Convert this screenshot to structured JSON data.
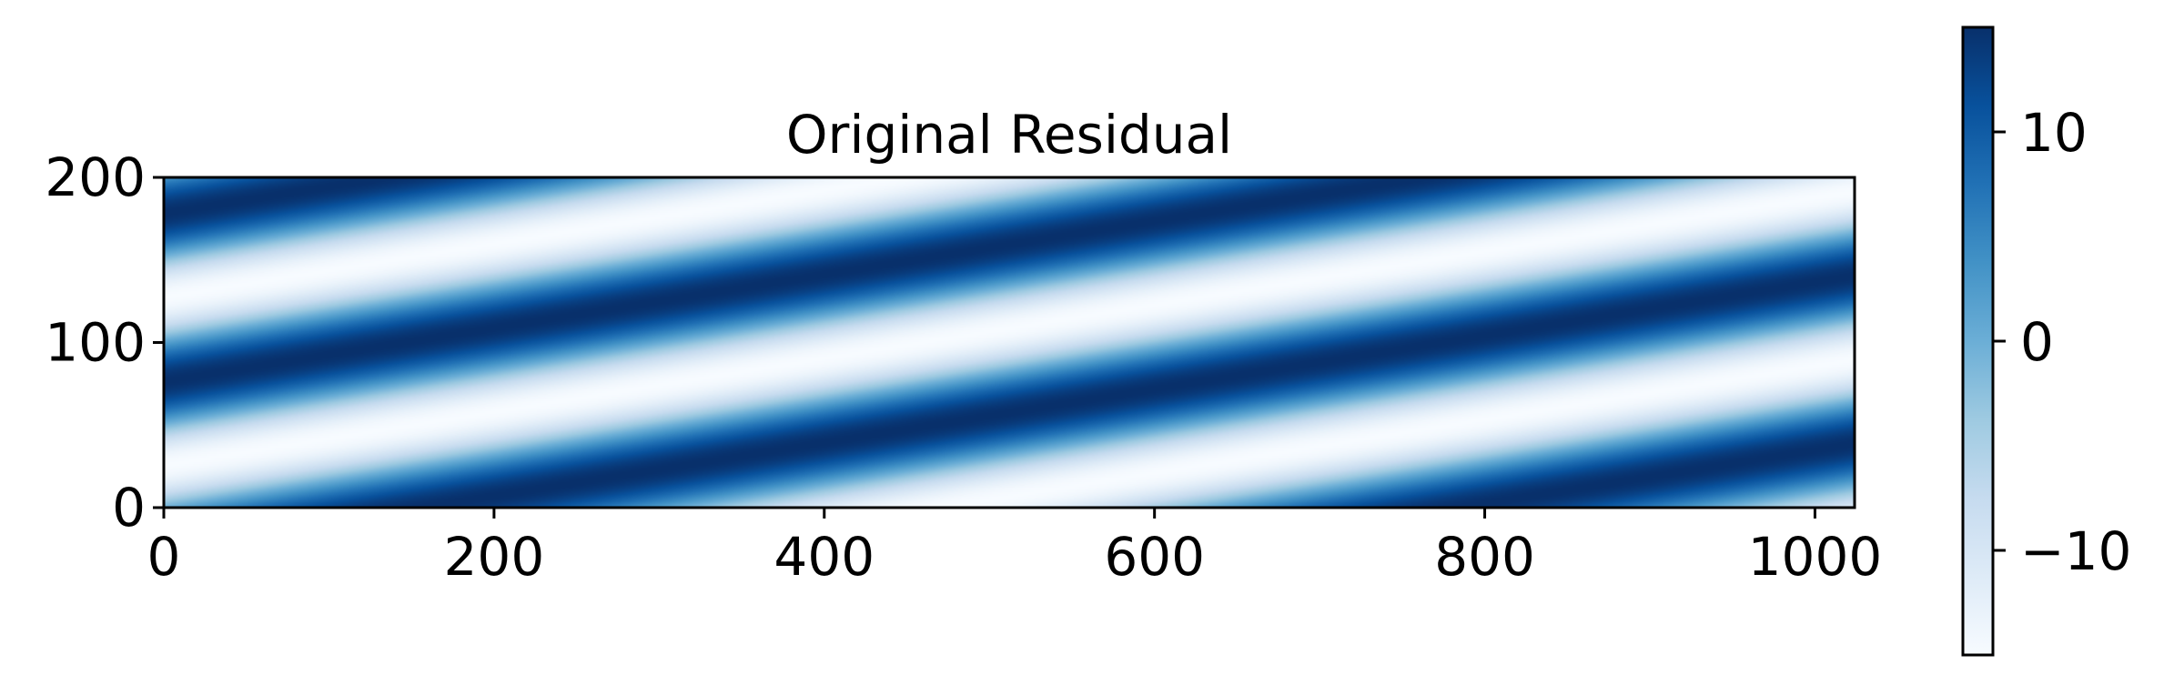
{
  "chart_data": {
    "type": "heatmap",
    "title": "Original Residual",
    "xlabel": "",
    "ylabel": "",
    "xlim": [
      0,
      1024
    ],
    "ylim": [
      0,
      200
    ],
    "x_ticks": [
      0,
      200,
      400,
      600,
      800,
      1000
    ],
    "y_ticks": [
      0,
      100,
      200
    ],
    "x_tick_labels": [
      "0",
      "200",
      "400",
      "600",
      "800",
      "1000"
    ],
    "y_tick_labels": [
      "0",
      "100",
      "200"
    ],
    "colormap": "Blues",
    "colormap_stops": [
      "#f7fbff",
      "#deebf7",
      "#c6dbef",
      "#9ecae1",
      "#6baed6",
      "#4292c6",
      "#2171b5",
      "#08519c",
      "#08306b"
    ],
    "colorbar": {
      "range": [
        -15,
        15
      ],
      "ticks": [
        -10,
        0,
        10
      ],
      "tick_labels": [
        "−10",
        "0",
        "10"
      ]
    },
    "pattern": {
      "description_kind": "sinusoidal stripes",
      "amplitude": 15,
      "x_frequency": 0.01,
      "y_frequency": 0.0617
    }
  }
}
